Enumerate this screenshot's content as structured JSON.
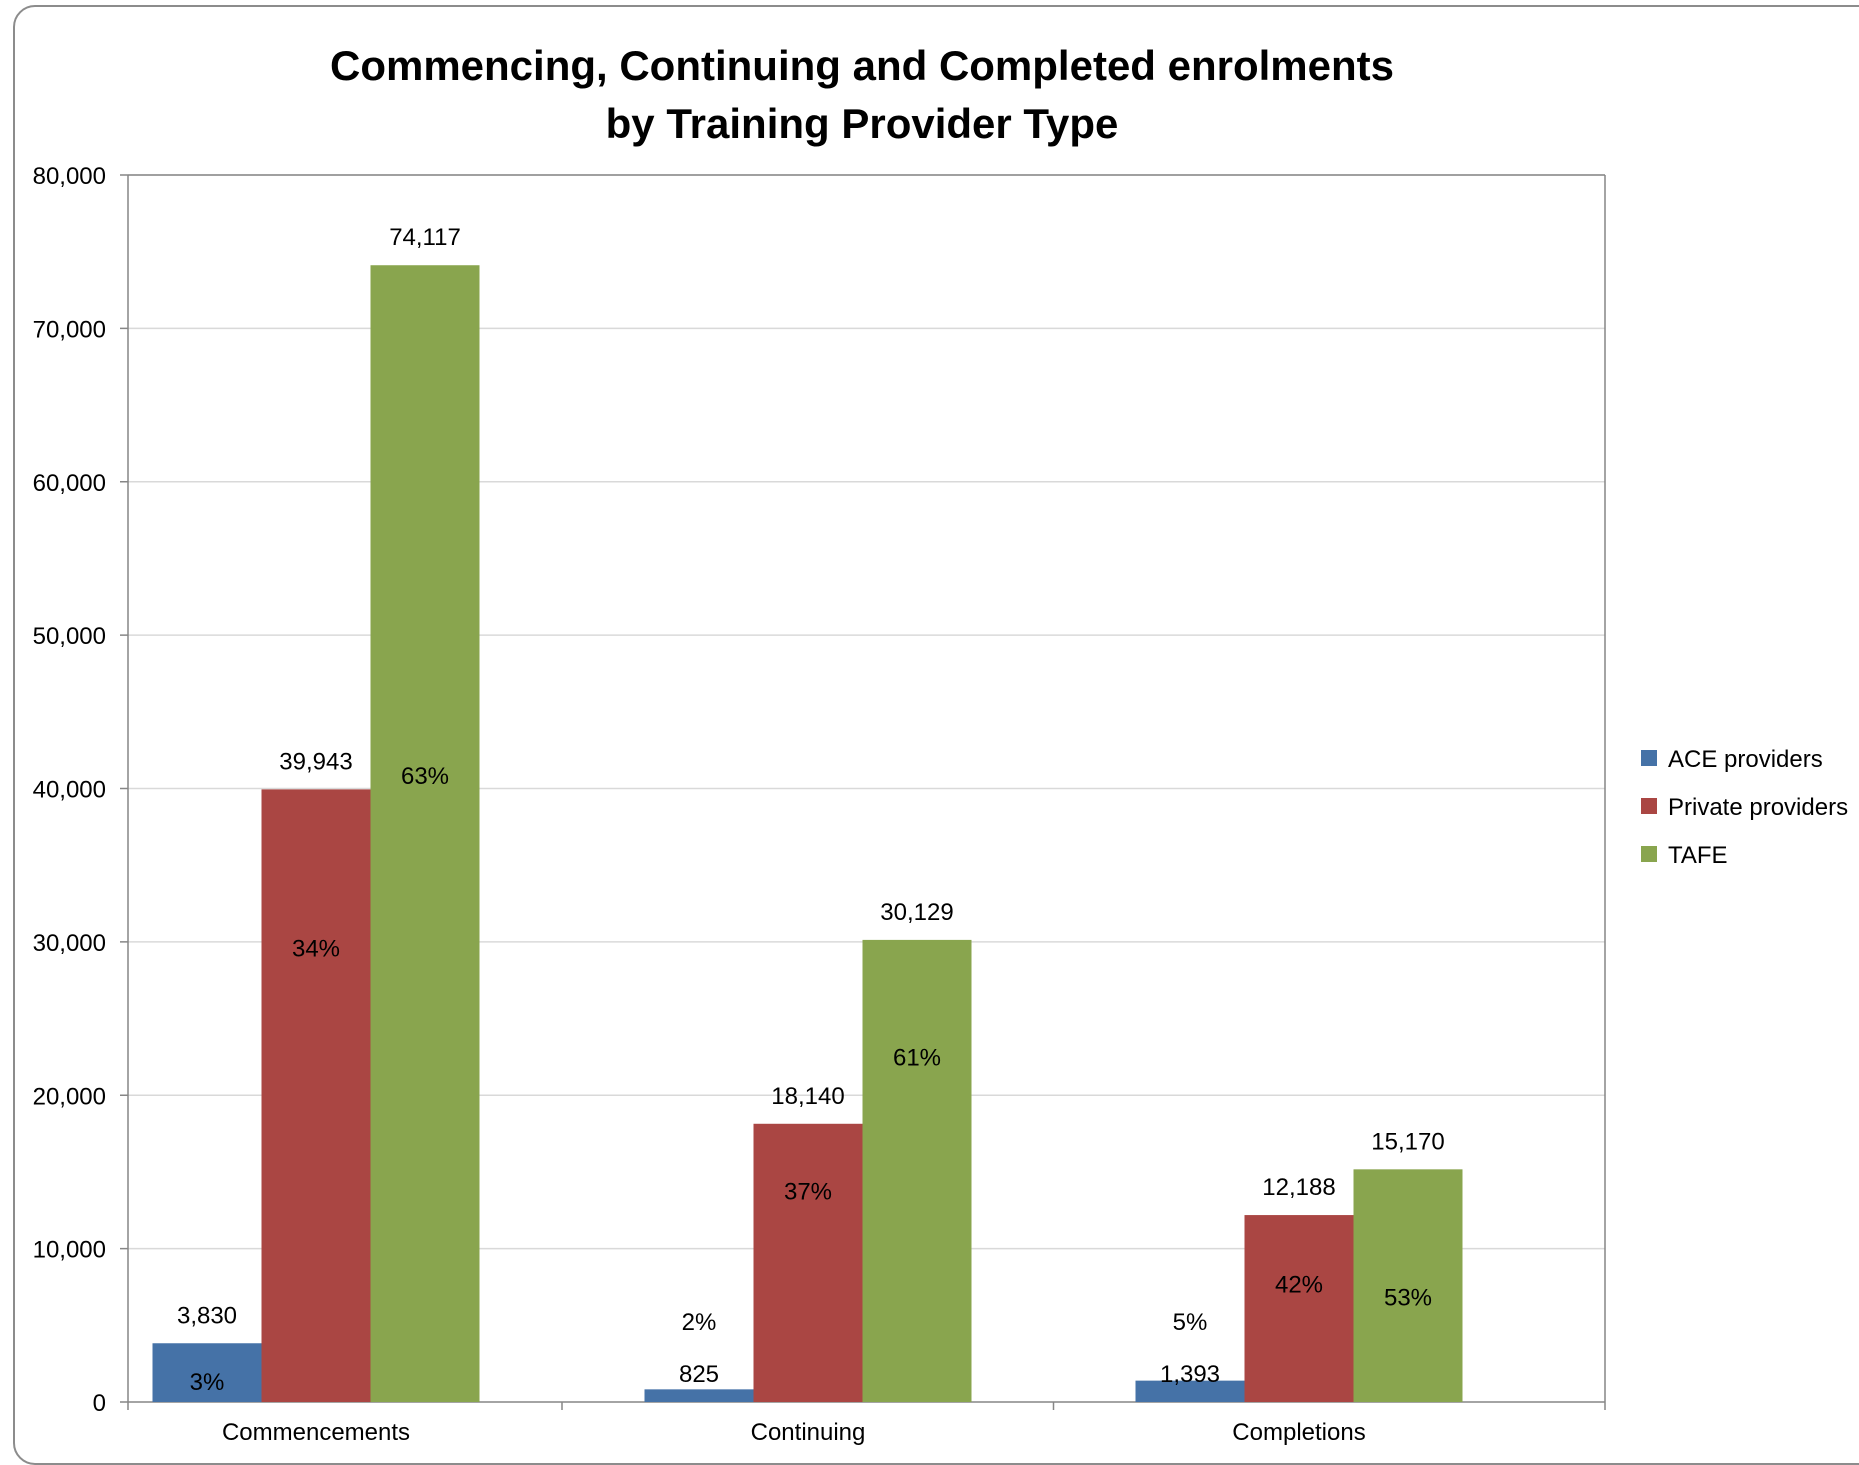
{
  "colors": {
    "ace": "#4572A7",
    "private": "#AA4643",
    "tafe": "#89A54E",
    "gridline": "#d9d9d9",
    "axis": "#868686"
  },
  "chart_data": {
    "type": "bar",
    "title_lines": [
      "Commencing, Continuing and Completed enrolments",
      "by Training Provider Type"
    ],
    "xlabel": "",
    "ylabel": "",
    "categories": [
      "Commencements",
      "Continuing",
      "Completions"
    ],
    "ylim": [
      0,
      80000
    ],
    "yticks": [
      0,
      10000,
      20000,
      30000,
      40000,
      50000,
      60000,
      70000,
      80000
    ],
    "ytick_labels": [
      "0",
      "10,000",
      "20,000",
      "30,000",
      "40,000",
      "50,000",
      "60,000",
      "70,000",
      "80,000"
    ],
    "grid": true,
    "legend_position": "right",
    "series": [
      {
        "name": "ACE providers",
        "color_key": "ace",
        "values": [
          3830,
          825,
          1393
        ],
        "value_labels": [
          "3,830",
          "825",
          "1,393"
        ],
        "percent_labels": [
          "3%",
          "2%",
          "5%"
        ]
      },
      {
        "name": "Private providers",
        "color_key": "private",
        "values": [
          39943,
          18140,
          12188
        ],
        "value_labels": [
          "39,943",
          "18,140",
          "12,188"
        ],
        "percent_labels": [
          "34%",
          "37%",
          "42%"
        ]
      },
      {
        "name": "TAFE",
        "color_key": "tafe",
        "values": [
          74117,
          30129,
          15170
        ],
        "value_labels": [
          "74,117",
          "30,129",
          "15,170"
        ],
        "percent_labels": [
          "63%",
          "61%",
          "53%"
        ]
      }
    ]
  }
}
